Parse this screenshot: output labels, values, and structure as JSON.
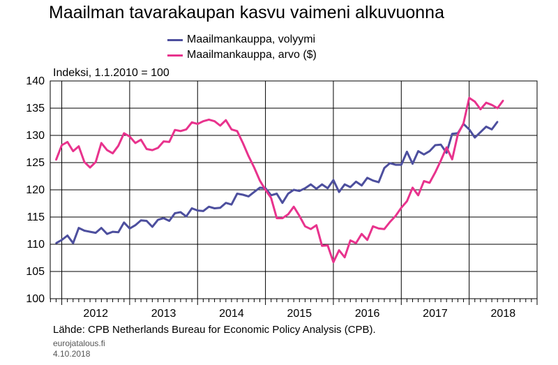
{
  "chart_data": {
    "type": "line",
    "title": "Maailman tavarakaupan kasvu vaimeni alkuvuonna",
    "ylabel": "Indeksi, 1.1.2010 = 100",
    "xlabel": "",
    "ylim": [
      100,
      140
    ],
    "yticks": [
      100,
      105,
      110,
      115,
      120,
      125,
      130,
      135,
      140
    ],
    "xlim": [
      2011.83,
      2019.0
    ],
    "xticks": [
      2012,
      2013,
      2014,
      2015,
      2016,
      2017,
      2018
    ],
    "grid": true,
    "legend": "top-center",
    "source": "Lähde: CPB Netherlands Bureau for Economic Policy Analysis (CPB).",
    "site": "eurojatalous.fi",
    "date": "4.10.2018",
    "series": [
      {
        "name": "Maailmankauppa, volyymi",
        "color": "#4d4f9e",
        "start": 2011.9167,
        "values": [
          110.2,
          110.8,
          111.6,
          110.2,
          113.0,
          112.5,
          112.3,
          112.1,
          113.0,
          111.9,
          112.3,
          112.2,
          114.0,
          112.9,
          113.5,
          114.4,
          114.3,
          113.2,
          114.5,
          114.8,
          114.3,
          115.7,
          115.9,
          115.1,
          116.6,
          116.2,
          116.1,
          116.9,
          116.6,
          116.7,
          117.6,
          117.3,
          119.3,
          119.1,
          118.8,
          119.6,
          120.4,
          120.3,
          119.0,
          119.3,
          117.6,
          119.3,
          120.0,
          119.8,
          120.3,
          121.0,
          120.2,
          121.0,
          120.3,
          121.8,
          119.6,
          121.0,
          120.5,
          121.5,
          120.8,
          122.2,
          121.7,
          121.4,
          124.0,
          124.9,
          124.6,
          124.6,
          127.0,
          124.8,
          127.1,
          126.5,
          127.1,
          128.2,
          128.3,
          126.8,
          130.3,
          130.4,
          132.1,
          131.1,
          129.6,
          130.6,
          131.6,
          131.1,
          132.5
        ]
      },
      {
        "name": "Maailmankauppa, arvo ($)",
        "color": "#e8338d",
        "start": 2011.9167,
        "values": [
          125.5,
          128.2,
          128.8,
          127.1,
          128.0,
          125.1,
          124.1,
          125.1,
          128.6,
          127.3,
          126.7,
          128.1,
          130.4,
          129.8,
          128.6,
          129.2,
          127.5,
          127.3,
          127.7,
          128.9,
          128.8,
          131.0,
          130.8,
          131.1,
          132.4,
          132.1,
          132.6,
          132.9,
          132.6,
          131.8,
          132.8,
          131.1,
          130.8,
          128.6,
          126.2,
          124.1,
          121.7,
          120.0,
          118.5,
          114.8,
          114.8,
          115.5,
          116.9,
          115.2,
          113.3,
          112.8,
          113.5,
          109.7,
          109.8,
          106.7,
          108.9,
          107.6,
          110.7,
          110.2,
          111.9,
          110.8,
          113.3,
          112.9,
          112.8,
          114.1,
          115.2,
          116.7,
          117.9,
          120.4,
          119.0,
          121.6,
          121.3,
          123.2,
          125.4,
          127.8,
          125.6,
          130.2,
          132.2,
          136.9,
          136.2,
          134.8,
          136.0,
          135.6,
          135.0,
          136.4
        ]
      }
    ]
  }
}
